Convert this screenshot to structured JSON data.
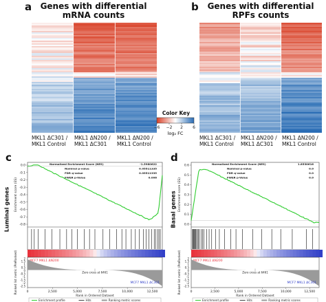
{
  "panel_a": {
    "letter": "a",
    "title_line1": "Genes with differential",
    "title_line2": "mRNA counts",
    "columns": [
      {
        "line1": "MKL1 ΔC301 /",
        "line2": "MKL1 Control"
      },
      {
        "line1": "MKL1 ΔN200 /",
        "line2": "MKL1 ΔC301"
      },
      {
        "line1": "MKL1 ΔN200 /",
        "line2": "MKL1 Control"
      }
    ]
  },
  "panel_b": {
    "letter": "b",
    "title_line1": "Genes with differential",
    "title_line2": "RPFs counts",
    "columns": [
      {
        "line1": "MKL1 ΔC301 /",
        "line2": "MKL1 Control"
      },
      {
        "line1": "MKL1 ΔN200 /",
        "line2": "MKL1 ΔC301"
      },
      {
        "line1": "MKL1 ΔN200 /",
        "line2": "MKL1 Control"
      }
    ]
  },
  "color_key": {
    "title": "Color Key",
    "ticks": [
      "−6",
      "−2",
      "2",
      "6"
    ],
    "label": "log₂ FC",
    "low_color": "#d9432a",
    "mid_color": "#ffffff",
    "high_color": "#2a6db5"
  },
  "panel_c": {
    "letter": "c",
    "side_label": "Luminal genes",
    "stats": [
      {
        "label": "Normalized Enrichment Score (NES)",
        "value": "-1.5980622"
      },
      {
        "label": "Nominal p-value",
        "value": "0.05511335"
      },
      {
        "label": "FDR q-value",
        "value": "0.05511335"
      },
      {
        "label": "FWER p-Value",
        "value": "0.006"
      }
    ],
    "es_axis_label": "Enrichment score (ES)",
    "es_ticks": [
      "0.0",
      "-0.1",
      "-0.2",
      "-0.3",
      "-0.4",
      "-0.5",
      "-0.6",
      "-0.7",
      "-0.8"
    ],
    "rank_axis_label": "Ranked list metric (PreRanked)",
    "rank_ticks": [
      "2",
      "1.5",
      "1",
      "0.5",
      "0",
      "-0.5",
      "-1",
      "-1.5",
      "-2",
      "-2.5"
    ],
    "x_ticks": [
      "0",
      "2,500",
      "5,000",
      "7,500",
      "10,000",
      "12,500"
    ],
    "x_axis_label": "Rank in Ordered Dataset",
    "zero_cross": "Zero cross at 6461",
    "left_phenotype": "MCF7 MKL1 ΔN200",
    "right_phenotype": "MCF7 MKL1 ΔC301",
    "legend": [
      "Enrichment profile",
      "Hits",
      "Ranking metric scores"
    ]
  },
  "panel_d": {
    "letter": "d",
    "side_label": "Basal genes",
    "stats": [
      {
        "label": "Normalized Enrichment Score (NES)",
        "value": "1.8530616"
      },
      {
        "label": "Nominal p-value",
        "value": "0.0"
      },
      {
        "label": "FDR q-value",
        "value": "0.0"
      },
      {
        "label": "FWER p-Value",
        "value": "0.0"
      }
    ],
    "es_axis_label": "Enrichment score (ES)",
    "es_ticks": [
      "0.6",
      "0.5",
      "0.4",
      "0.3",
      "0.2",
      "0.1",
      "0.0"
    ],
    "rank_axis_label": "Ranked list metric (PreRanked)",
    "rank_ticks": [
      "2",
      "1.5",
      "1",
      "0.5",
      "0",
      "-0.5",
      "-1",
      "-1.5",
      "-2",
      "-2.5"
    ],
    "x_ticks": [
      "0",
      "2,500",
      "5,000",
      "7,500",
      "10,000",
      "12,500"
    ],
    "x_axis_label": "Rank in Ordered Dataset",
    "zero_cross": "Zero cross at 6461",
    "left_phenotype": "MCF7 MKL1 ΔN200",
    "right_phenotype": "MCF7 MKL1 ΔC301",
    "legend": [
      "Enrichment profile",
      "Hits",
      "Ranking metric scores"
    ]
  },
  "colors": {
    "es_line": "#2ecc2e",
    "pos_pheno": "#e8323c",
    "neg_pheno": "#3240c8",
    "rank_fill": "#9a9a9a"
  }
}
